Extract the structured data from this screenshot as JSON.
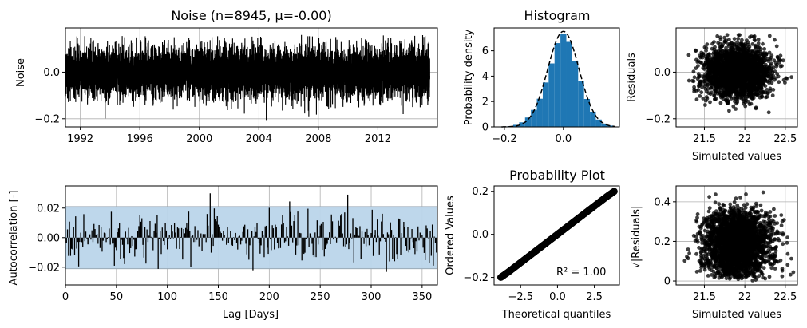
{
  "chart_data": [
    {
      "id": "noise",
      "type": "line",
      "title": "Noise (n=8945, μ=-0.00)",
      "ylabel": "Noise",
      "xlabel": "",
      "xlim": [
        1991.0,
        2016.0
      ],
      "ylim": [
        -0.235,
        0.19
      ],
      "xticks": [
        1992,
        1996,
        2000,
        2004,
        2008,
        2012
      ],
      "yticks": [
        -0.2,
        0.0
      ],
      "ytick_labels": [
        "−0.2",
        "0.0"
      ],
      "grid": true,
      "series": [
        {
          "color": "#000000",
          "n": 8945,
          "mean": 0.0,
          "std": 0.053
        }
      ]
    },
    {
      "id": "histogram",
      "type": "bar",
      "title": "Histogram",
      "ylabel": "Probability density",
      "xlabel": "",
      "xlim": [
        -0.235,
        0.19
      ],
      "ylim": [
        0,
        7.8
      ],
      "xticks": [
        -0.2,
        0.0
      ],
      "xtick_labels": [
        "−0.2",
        "0.0"
      ],
      "yticks": [
        0,
        2,
        4,
        6
      ],
      "bin_centers": [
        -0.2,
        -0.18,
        -0.16,
        -0.14,
        -0.12,
        -0.1,
        -0.08,
        -0.06,
        -0.04,
        -0.02,
        0.0,
        0.02,
        0.04,
        0.06,
        0.08,
        0.1,
        0.12,
        0.14,
        0.16,
        0.18
      ],
      "values": [
        0.02,
        0.06,
        0.16,
        0.36,
        0.74,
        1.34,
        2.22,
        3.5,
        5.0,
        6.6,
        7.35,
        6.7,
        5.2,
        3.6,
        2.2,
        1.2,
        0.58,
        0.26,
        0.1,
        0.03
      ],
      "bar_color": "#1f77b4",
      "fit_line": {
        "style": "dashed",
        "color": "#000000",
        "mean": 0.0,
        "std": 0.053
      }
    },
    {
      "id": "residuals",
      "type": "scatter",
      "title": "",
      "ylabel": "Residuals",
      "xlabel": "Simulated values",
      "xlim": [
        21.15,
        22.65
      ],
      "ylim": [
        -0.235,
        0.19
      ],
      "xticks": [
        21.5,
        22.0,
        22.5
      ],
      "yticks": [
        -0.2,
        0.0
      ],
      "ytick_labels": [
        "−0.2",
        "0.0"
      ],
      "point_color": "#000000",
      "n": 8945
    },
    {
      "id": "autocorrelation",
      "type": "bar",
      "title": "",
      "ylabel": "Autocorrelation [-]",
      "xlabel": "Lag [Days]",
      "xlim": [
        0,
        365
      ],
      "ylim": [
        -0.032,
        0.035
      ],
      "xticks": [
        0,
        50,
        100,
        150,
        200,
        250,
        300,
        350
      ],
      "yticks": [
        -0.02,
        0.0,
        0.02
      ],
      "ytick_labels": [
        "−0.02",
        "0.00",
        "0.02"
      ],
      "confidence_band": [
        -0.021,
        0.021
      ],
      "band_color": "#bad5ea",
      "bar_color": "#000000",
      "n_lags": 365
    },
    {
      "id": "probability_plot",
      "type": "scatter",
      "title": "Probability Plot",
      "ylabel": "Ordered Values",
      "xlabel": "Theoretical quantiles",
      "xlim": [
        -4.3,
        4.2
      ],
      "ylim": [
        -0.235,
        0.225
      ],
      "xticks": [
        -2.5,
        0.0,
        2.5
      ],
      "xtick_labels": [
        "−2.5",
        "0.0",
        "2.5"
      ],
      "yticks": [
        -0.2,
        0.0,
        0.2
      ],
      "ytick_labels": [
        "−0.2",
        "0.0",
        "0.2"
      ],
      "fit_line": {
        "slope": 0.0525,
        "intercept": 0.0
      },
      "annotation": "R² = 1.00"
    },
    {
      "id": "scale_location",
      "type": "scatter",
      "title": "",
      "ylabel": "√|Residuals|",
      "xlabel": "Simulated values",
      "xlim": [
        21.15,
        22.65
      ],
      "ylim": [
        -0.02,
        0.48
      ],
      "xticks": [
        21.5,
        22.0,
        22.5
      ],
      "yticks": [
        0.0,
        0.2,
        0.4
      ],
      "point_color": "#000000",
      "n": 8945
    }
  ]
}
